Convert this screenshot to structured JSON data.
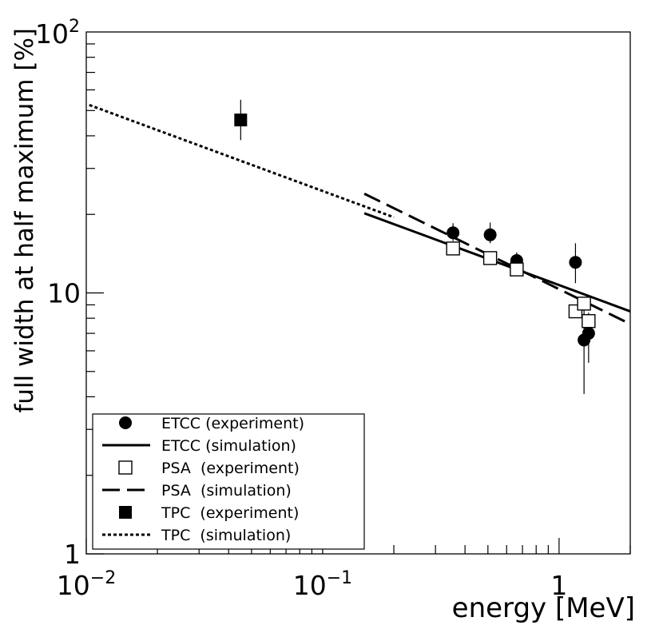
{
  "chart_data": {
    "type": "scatter",
    "xscale": "log",
    "yscale": "log",
    "xlim": [
      0.01,
      2
    ],
    "ylim": [
      1,
      100
    ],
    "xlabel": "energy [MeV]",
    "ylabel": "full width at half maximum [%]",
    "x_tick_labels": [
      {
        "base": "10",
        "exp": "−2",
        "value": 0.01
      },
      {
        "base": "10",
        "exp": "−1",
        "value": 0.1
      },
      {
        "base": "1",
        "exp": "",
        "value": 1
      }
    ],
    "y_tick_labels": [
      {
        "base": "1",
        "exp": "",
        "value": 1
      },
      {
        "base": "10",
        "exp": "",
        "value": 10
      },
      {
        "base": "10",
        "exp": "2",
        "value": 100
      }
    ],
    "series": [
      {
        "name": "ETCC (experiment)",
        "kind": "points",
        "marker": "filled-circle",
        "points": [
          {
            "x": 0.356,
            "y": 17.0,
            "ylo": 15.8,
            "yhi": 18.5
          },
          {
            "x": 0.511,
            "y": 16.7,
            "ylo": 15.5,
            "yhi": 18.6
          },
          {
            "x": 0.662,
            "y": 13.3,
            "ylo": 12.5,
            "yhi": 14.3
          },
          {
            "x": 1.173,
            "y": 13.1,
            "ylo": 10.9,
            "yhi": 15.5
          },
          {
            "x": 1.275,
            "y": 6.6,
            "ylo": 4.1,
            "yhi": 8.7
          },
          {
            "x": 1.333,
            "y": 7.0,
            "ylo": 5.4,
            "yhi": 8.4
          }
        ]
      },
      {
        "name": "ETCC (simulation)",
        "kind": "line",
        "dash": "solid",
        "points": [
          {
            "x": 0.15,
            "y": 20.2
          },
          {
            "x": 2.0,
            "y": 8.5
          }
        ]
      },
      {
        "name": "PSA  (experiment)",
        "kind": "points",
        "marker": "open-square",
        "points": [
          {
            "x": 0.356,
            "y": 14.8
          },
          {
            "x": 0.511,
            "y": 13.6
          },
          {
            "x": 0.662,
            "y": 12.3
          },
          {
            "x": 1.173,
            "y": 8.5
          },
          {
            "x": 1.275,
            "y": 9.1
          },
          {
            "x": 1.333,
            "y": 7.8
          }
        ]
      },
      {
        "name": "PSA  (simulation)",
        "kind": "line",
        "dash": "long-dash",
        "points": [
          {
            "x": 0.15,
            "y": 24.0
          },
          {
            "x": 2.0,
            "y": 7.6
          }
        ]
      },
      {
        "name": "TPC  (experiment)",
        "kind": "points",
        "marker": "filled-square",
        "points": [
          {
            "x": 0.045,
            "y": 46.0,
            "ylo": 38.5,
            "yhi": 55.0
          }
        ]
      },
      {
        "name": "TPC  (simulation)",
        "kind": "line",
        "dash": "dotted",
        "points": [
          {
            "x": 0.0103,
            "y": 52.5
          },
          {
            "x": 0.2,
            "y": 19.5
          }
        ]
      }
    ],
    "legend": {
      "placement": "bottom-left",
      "entries": [
        {
          "label": "ETCC (experiment)",
          "symbol": "filled-circle"
        },
        {
          "label": "ETCC (simulation)",
          "symbol": "solid"
        },
        {
          "label": "PSA  (experiment)",
          "symbol": "open-square"
        },
        {
          "label": "PSA  (simulation)",
          "symbol": "long-dash"
        },
        {
          "label": "TPC  (experiment)",
          "symbol": "filled-square"
        },
        {
          "label": "TPC  (simulation)",
          "symbol": "dotted"
        }
      ]
    }
  }
}
